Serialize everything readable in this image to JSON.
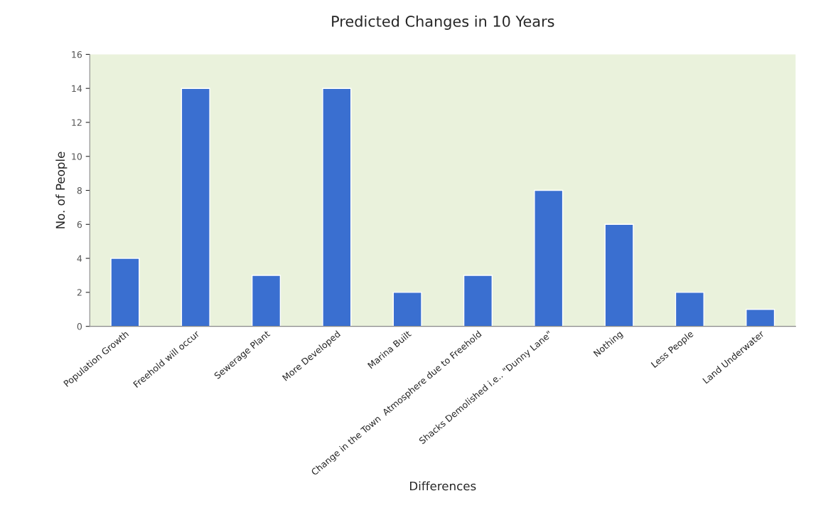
{
  "chart_data": {
    "type": "bar",
    "title": "Predicted Changes in 10 Years",
    "xlabel": "Differences",
    "ylabel": "No. of People",
    "categories": [
      "Population Growth",
      "Freehold will occur",
      "Sewerage Plant",
      "More Developed",
      "Marina Built",
      "Change in the Town  Atmosphere due to Freehold",
      "Shacks Demolished i.e.. \"Dunny Lane\"",
      "Nothing",
      "Less People",
      "Land Underwater"
    ],
    "values": [
      4,
      14,
      3,
      14,
      2,
      3,
      8,
      6,
      2,
      1
    ],
    "color": "#3a6fd0",
    "ylim": [
      0,
      16
    ],
    "yticks": [
      0,
      2,
      4,
      6,
      8,
      10,
      12,
      14,
      16
    ],
    "grid": false,
    "legend": false
  }
}
